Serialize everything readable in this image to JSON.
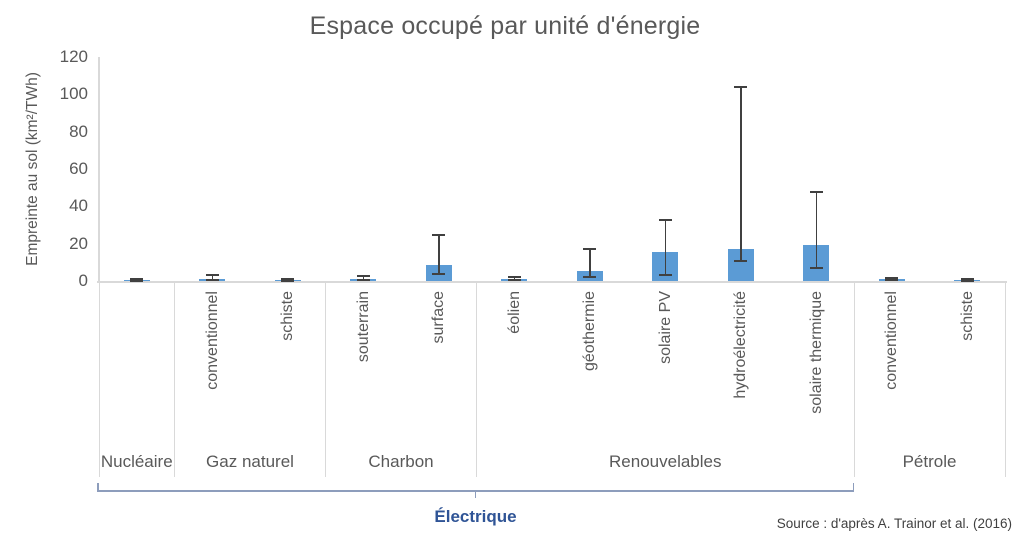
{
  "chart_data": {
    "type": "bar",
    "title": "Espace occupé par unité d'énergie",
    "ylabel": "Empreinte au sol (km²/TWh)",
    "ylim": [
      0,
      120
    ],
    "yticks": [
      0,
      20,
      40,
      60,
      80,
      100,
      120
    ],
    "grid": "off",
    "legend": "none",
    "error_bars": true,
    "groups": [
      {
        "label": "Nucléaire",
        "bars": [
          {
            "label": "",
            "value": 0.3,
            "err_low": 0.1,
            "err_high": 0.9
          }
        ]
      },
      {
        "label": "Gaz naturel",
        "bars": [
          {
            "label": "conventionnel",
            "value": 1.0,
            "err_low": 0.4,
            "err_high": 3.0
          },
          {
            "label": "schiste",
            "value": 0.5,
            "err_low": 0.2,
            "err_high": 1.0
          }
        ]
      },
      {
        "label": "Charbon",
        "bars": [
          {
            "label": "souterrain",
            "value": 1.0,
            "err_low": 0.4,
            "err_high": 2.5
          },
          {
            "label": "surface",
            "value": 8.5,
            "err_low": 3.5,
            "err_high": 24.5
          }
        ]
      },
      {
        "label": "Renouvelables",
        "bars": [
          {
            "label": "éolien",
            "value": 1.0,
            "err_low": 0.4,
            "err_high": 2.0
          },
          {
            "label": "géothermie",
            "value": 5.5,
            "err_low": 2.0,
            "err_high": 17.0
          },
          {
            "label": "solaire PV",
            "value": 15.5,
            "err_low": 3.0,
            "err_high": 32.5
          },
          {
            "label": "hydroélectricité",
            "value": 17.0,
            "err_low": 10.5,
            "err_high": 104.0
          },
          {
            "label": "solaire thermique",
            "value": 19.5,
            "err_low": 7.0,
            "err_high": 47.5
          }
        ]
      },
      {
        "label": "Pétrole",
        "bars": [
          {
            "label": "conventionnel",
            "value": 1.0,
            "err_low": 0.6,
            "err_high": 1.8
          },
          {
            "label": "schiste",
            "value": 0.4,
            "err_low": 0.2,
            "err_high": 1.0
          }
        ]
      }
    ],
    "bracket": {
      "label": "Électrique",
      "covers_groups": [
        "Nucléaire",
        "Gaz naturel",
        "Charbon",
        "Renouvelables"
      ]
    },
    "source": "Source : d'après A. Trainor et al. (2016)",
    "colors": {
      "bar": "#5b9bd5",
      "error": "#404040",
      "axis": "#d9d9d9",
      "text": "#595959",
      "bracket": "#8d9dbc",
      "bracket_label": "#2f5496"
    }
  }
}
